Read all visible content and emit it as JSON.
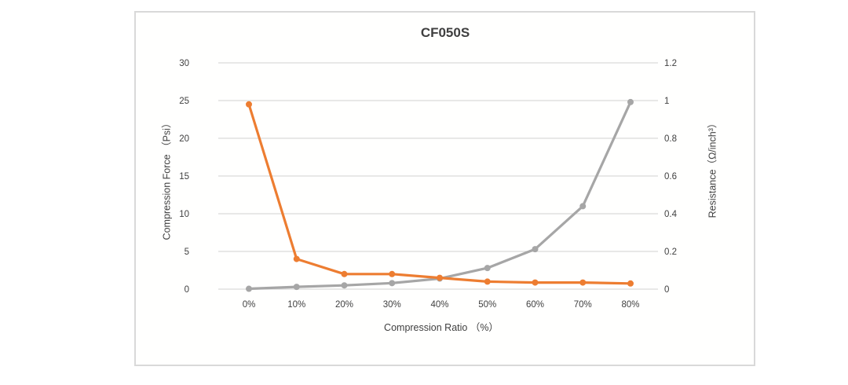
{
  "chart_data": {
    "type": "line",
    "title": "CF050S",
    "xlabel": "Compression Ratio （%）",
    "ylabel_left": "Compression Force （Psi）",
    "ylabel_right": "Resistance（Ω/inch³）",
    "categories": [
      "0%",
      "10%",
      "20%",
      "30%",
      "40%",
      "50%",
      "60%",
      "70%",
      "80%"
    ],
    "series": [
      {
        "name": "Compression Force",
        "axis": "left",
        "color": "#a6a6a6",
        "values": [
          0.05,
          0.3,
          0.5,
          0.8,
          1.4,
          2.8,
          5.3,
          11,
          24.8
        ]
      },
      {
        "name": "Resistance",
        "axis": "right",
        "color": "#ed7d31",
        "values": [
          0.98,
          0.16,
          0.08,
          0.08,
          0.06,
          0.04,
          0.035,
          0.035,
          0.03
        ]
      }
    ],
    "left_axis": {
      "min": 0,
      "max": 30,
      "ticks": [
        0,
        5,
        10,
        15,
        20,
        25,
        30
      ],
      "tick_labels": [
        "0",
        "5",
        "10",
        "15",
        "20",
        "25",
        "30"
      ]
    },
    "right_axis": {
      "min": 0,
      "max": 1.2,
      "ticks": [
        0,
        0.2,
        0.4,
        0.6,
        0.8,
        1,
        1.2
      ],
      "tick_labels": [
        "0",
        "0.2",
        "0.4",
        "0.6",
        "0.8",
        "1",
        "1.2"
      ]
    },
    "grid": true,
    "legend": false,
    "colors": {
      "gridline": "#d9d9d9",
      "tick_label": "#404040",
      "title": "#3f3f3f",
      "chart_border": "#d9d9d9",
      "background": "#ffffff"
    }
  }
}
